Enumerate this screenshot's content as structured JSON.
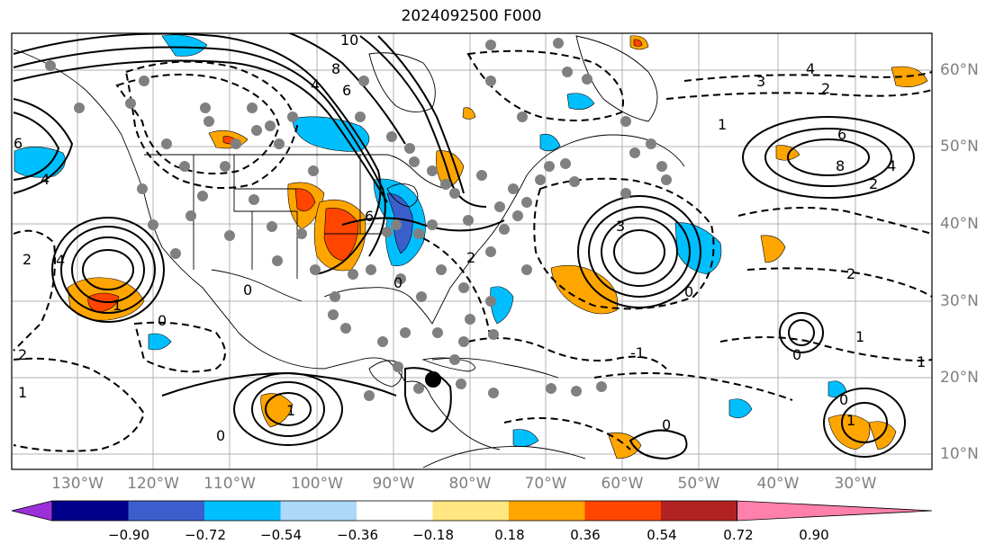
{
  "title": "2024092500 F000",
  "longitude_labels": [
    "130°W",
    "120°W",
    "110°W",
    "100°W",
    "90°W",
    "80°W",
    "70°W",
    "60°W",
    "50°W",
    "40°W",
    "30°W"
  ],
  "latitude_labels": [
    "60°N",
    "50°N",
    "40°N",
    "30°N",
    "20°N",
    "10°N"
  ],
  "colorbar": {
    "tick_labels": [
      "−0.90",
      "−0.72",
      "−0.54",
      "−0.36",
      "−0.18",
      "0.18",
      "0.36",
      "0.54",
      "0.72",
      "0.90"
    ],
    "colors": [
      "#9b30d9",
      "#00008b",
      "#3a5fcd",
      "#00bfff",
      "#add8f7",
      "#ffffff",
      "#ffe680",
      "#ffa500",
      "#ff4500",
      "#b22222",
      "#ff80aa"
    ]
  },
  "contour_labels": [
    "10",
    "8",
    "6",
    "4",
    "3",
    "2",
    "1",
    "0",
    "-1",
    "-2",
    "-3"
  ],
  "colors": {
    "grid": "#b0b0b0",
    "contour": "#000000",
    "station": "#808080",
    "border": "#000000"
  }
}
